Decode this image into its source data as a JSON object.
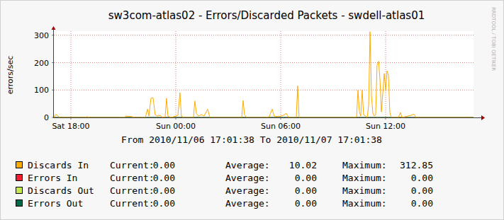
{
  "chart_data": {
    "type": "line",
    "title": "sw3com-atlas02 - Errors/Discarded Packets - swdell-atlas01",
    "subtitle": "From 2010/11/06 17:01:38 To 2010/11/07 17:01:38",
    "y_label": "errors/sec",
    "annotations": [
      "RRDTOOL / TOBI OETIKER"
    ],
    "stat_labels": [
      "Current:",
      "Average:",
      "Maximum:"
    ],
    "xlim": [
      17.0272,
      41.0272
    ],
    "xticks": [
      {
        "value": 18,
        "label": "Sat 18:00"
      },
      {
        "value": 24,
        "label": "Sun 00:00"
      },
      {
        "value": 30,
        "label": "Sun 06:00"
      },
      {
        "value": 36,
        "label": "Sun 12:00"
      }
    ],
    "ylim": [
      0,
      315
    ],
    "yticks": [
      0,
      100,
      200,
      300
    ],
    "grid": true,
    "series": [
      {
        "name": "Errors In",
        "color": "#f51d30",
        "current": "0.00",
        "average": "0.00",
        "maximum": "0.00",
        "x": [
          17.0272,
          41.0272
        ],
        "values": [
          0,
          0
        ]
      },
      {
        "name": "Discards Out",
        "color": "#c5e84e",
        "current": "0.00",
        "average": "0.00",
        "maximum": "0.00",
        "x": [
          17.0272,
          41.0272
        ],
        "values": [
          0,
          0
        ]
      },
      {
        "name": "Errors Out",
        "color": "#00694a",
        "current": "0.00",
        "average": "0.00",
        "maximum": "0.00",
        "x": [
          17.0272,
          41.0272
        ],
        "values": [
          0,
          0
        ]
      },
      {
        "name": "Discards In",
        "color": "#ffab00",
        "current": "0.00",
        "average": "10.02",
        "maximum": "312.85",
        "x": [
          17.03,
          17.11,
          17.23,
          17.35,
          18.81,
          18.93,
          19.05,
          21.04,
          21.16,
          21.49,
          21.65,
          22.26,
          22.38,
          22.46,
          22.58,
          22.7,
          22.82,
          22.95,
          23.11,
          23.23,
          23.39,
          23.47,
          23.55,
          23.72,
          24.0,
          24.12,
          24.24,
          24.32,
          24.45,
          25.01,
          25.09,
          25.18,
          25.3,
          25.46,
          25.62,
          25.82,
          25.95,
          27.77,
          27.85,
          27.93,
          28.05,
          29.15,
          29.35,
          29.51,
          29.63,
          29.88,
          30.16,
          30.32,
          30.45,
          30.89,
          30.97,
          31.05,
          34.22,
          34.34,
          34.42,
          34.5,
          34.58,
          34.66,
          34.74,
          34.86,
          34.95,
          35.03,
          35.11,
          35.19,
          35.27,
          35.35,
          35.43,
          35.51,
          35.6,
          35.68,
          35.76,
          35.84,
          35.92,
          36.0,
          36.08,
          36.16,
          36.24,
          36.32,
          36.73,
          36.85,
          36.93,
          37.26,
          37.46,
          37.62,
          37.74,
          41.03
        ],
        "values": [
          0,
          10,
          8,
          0,
          0,
          3,
          0,
          0,
          5,
          3,
          0,
          0,
          30,
          5,
          70,
          72,
          10,
          5,
          8,
          0,
          0,
          70,
          5,
          0,
          5,
          8,
          90,
          5,
          0,
          0,
          60,
          15,
          5,
          10,
          5,
          30,
          0,
          0,
          62,
          10,
          0,
          0,
          3,
          30,
          5,
          3,
          8,
          15,
          0,
          0,
          115,
          0,
          0,
          3,
          100,
          20,
          5,
          100,
          10,
          5,
          0,
          45,
          312.85,
          80,
          15,
          5,
          10,
          190,
          205,
          135,
          20,
          90,
          160,
          100,
          170,
          155,
          20,
          0,
          0,
          18,
          0,
          5,
          8,
          12,
          0,
          0
        ]
      }
    ]
  }
}
